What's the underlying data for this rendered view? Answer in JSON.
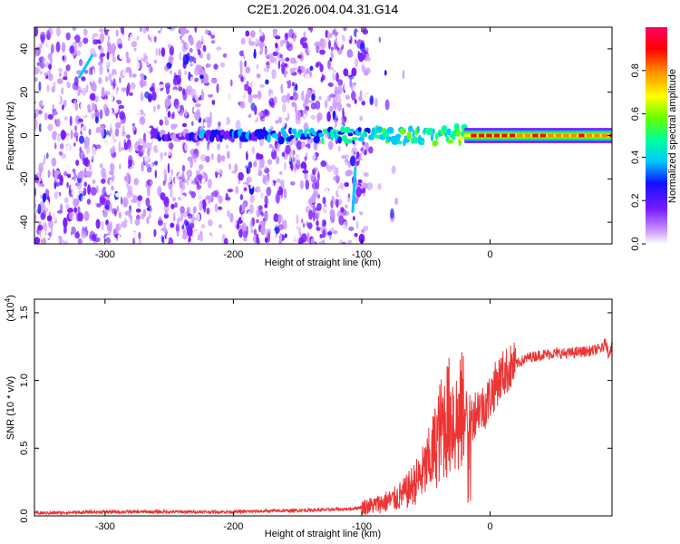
{
  "title": "C2E1.2026.004.04.31.G14",
  "chart_data": [
    {
      "type": "heatmap",
      "name": "spectrogram",
      "xlabel": "Height of straight line (km)",
      "ylabel": "Frequency (Hz)",
      "xlim": [
        -355,
        95
      ],
      "ylim": [
        -50,
        50
      ],
      "xticks": [
        -300,
        -200,
        -100,
        0
      ],
      "yticks": [
        -40,
        -20,
        0,
        20,
        40
      ],
      "colorbar": {
        "label": "Normalized spectral amplitude",
        "range": [
          0,
          1
        ],
        "ticks": [
          "0.0",
          "0.2",
          "0.4",
          "0.6",
          "0.8"
        ],
        "tick_values": [
          0.0,
          0.2,
          0.4,
          0.6,
          0.8
        ],
        "colors": [
          "#ffffff",
          "#cc99ff",
          "#7a1cff",
          "#1010ff",
          "#00c8ff",
          "#00ff99",
          "#66ff00",
          "#ffff00",
          "#ff8800",
          "#ff0000",
          "#ff0066"
        ]
      },
      "signal_band": {
        "frequency_hz": 0,
        "starts_km": -260,
        "strong_above_km": -20,
        "peak_amplitude": 0.95
      },
      "noise_region_km": [
        -355,
        -95
      ]
    },
    {
      "type": "line",
      "name": "snr",
      "xlabel": "Height of straight line (km)",
      "ylabel": "SNR (10 * v/v)",
      "multiplier_label": "(x10",
      "multiplier_exp": "4",
      "xlim": [
        -355,
        95
      ],
      "ylim": [
        0,
        1.6
      ],
      "xticks": [
        -300,
        -200,
        -100,
        0
      ],
      "yticks": [
        "0.0",
        "0.5",
        "1.0",
        "1.5"
      ],
      "ytick_values": [
        0.0,
        0.5,
        1.0,
        1.5
      ],
      "color": "#ee3333",
      "x": [
        -355,
        -300,
        -250,
        -200,
        -150,
        -110,
        -90,
        -75,
        -65,
        -55,
        -50,
        -45,
        -40,
        -35,
        -30,
        -25,
        -20,
        -15,
        -10,
        -5,
        0,
        5,
        10,
        20,
        30,
        40,
        50,
        60,
        70,
        80,
        88,
        90,
        92,
        95
      ],
      "y": [
        0.02,
        0.03,
        0.03,
        0.03,
        0.04,
        0.05,
        0.08,
        0.12,
        0.18,
        0.28,
        0.35,
        0.45,
        0.6,
        0.7,
        0.75,
        0.68,
        0.8,
        0.7,
        0.8,
        0.8,
        0.88,
        0.98,
        1.05,
        1.12,
        1.17,
        1.19,
        1.2,
        1.2,
        1.21,
        1.22,
        1.24,
        1.3,
        1.2,
        1.25
      ]
    }
  ]
}
